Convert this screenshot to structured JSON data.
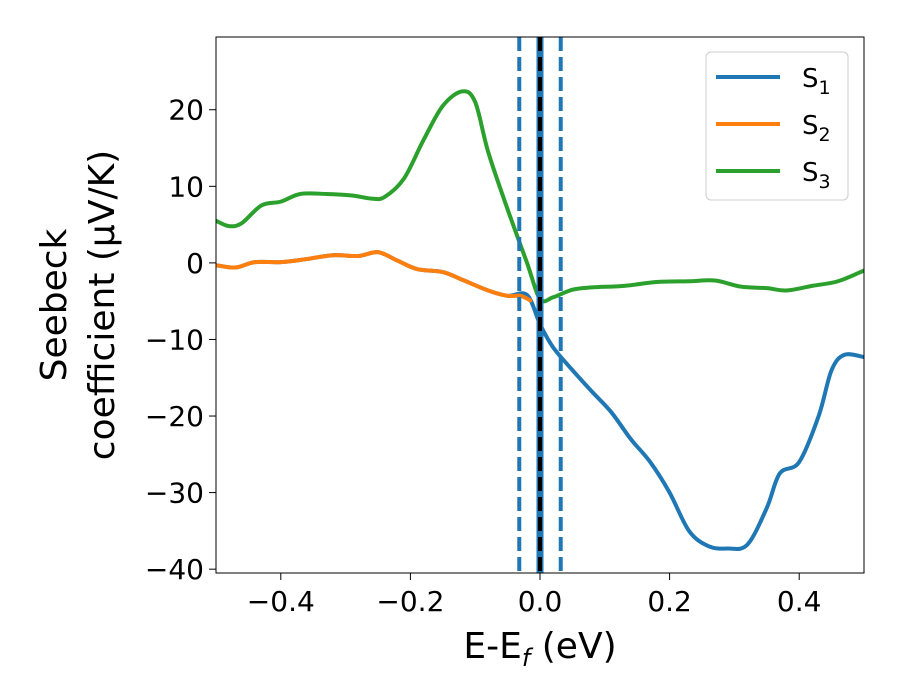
{
  "chart_data": {
    "type": "line",
    "xlabel": {
      "main": "E-E",
      "sub": "f",
      "tail": " (eV)"
    },
    "ylabel": {
      "line1": "Seebeck",
      "line2": "coefficient  (μV/K)"
    },
    "xlim": [
      -0.5,
      0.5
    ],
    "ylim": [
      -40.5,
      29.5
    ],
    "x_ticks": [
      -0.4,
      -0.2,
      0.0,
      0.2,
      0.4
    ],
    "x_tick_labels": [
      "−0.4",
      "−0.2",
      "0.0",
      "0.2",
      "0.4"
    ],
    "y_ticks": [
      20,
      10,
      0,
      -10,
      -20,
      -30,
      -40
    ],
    "y_tick_labels": [
      "20",
      "10",
      "0",
      "−10",
      "−20",
      "−30",
      "−40"
    ],
    "grid": false,
    "legend": {
      "position": "top-right"
    },
    "series": [
      {
        "name": "S1",
        "label_main": "S",
        "label_sub": "1",
        "color": "#1f77b4",
        "points": [
          [
            -0.5,
            -0.3
          ],
          [
            -0.47,
            -0.6
          ],
          [
            -0.44,
            0.1
          ],
          [
            -0.4,
            0.1
          ],
          [
            -0.36,
            0.5
          ],
          [
            -0.32,
            1.0
          ],
          [
            -0.28,
            0.9
          ],
          [
            -0.25,
            1.4
          ],
          [
            -0.22,
            0.3
          ],
          [
            -0.19,
            -0.8
          ],
          [
            -0.15,
            -1.2
          ],
          [
            -0.12,
            -2.2
          ],
          [
            -0.08,
            -3.6
          ],
          [
            -0.05,
            -4.3
          ],
          [
            -0.02,
            -4.2
          ],
          [
            0.0,
            -8.0
          ],
          [
            0.02,
            -11.0
          ],
          [
            0.05,
            -14.0
          ],
          [
            0.08,
            -16.8
          ],
          [
            0.11,
            -19.5
          ],
          [
            0.14,
            -23.0
          ],
          [
            0.17,
            -26.0
          ],
          [
            0.2,
            -30.0
          ],
          [
            0.23,
            -35.0
          ],
          [
            0.26,
            -37.0
          ],
          [
            0.29,
            -37.3
          ],
          [
            0.32,
            -36.8
          ],
          [
            0.35,
            -32.0
          ],
          [
            0.37,
            -27.5
          ],
          [
            0.4,
            -26.0
          ],
          [
            0.43,
            -20.0
          ],
          [
            0.45,
            -14.0
          ],
          [
            0.47,
            -12.0
          ],
          [
            0.5,
            -12.3
          ]
        ]
      },
      {
        "name": "S2",
        "label_main": "S",
        "label_sub": "2",
        "color": "#ff7f0e",
        "points": [
          [
            -0.5,
            -0.3
          ],
          [
            -0.47,
            -0.6
          ],
          [
            -0.44,
            0.1
          ],
          [
            -0.4,
            0.1
          ],
          [
            -0.36,
            0.5
          ],
          [
            -0.32,
            1.0
          ],
          [
            -0.28,
            0.9
          ],
          [
            -0.25,
            1.4
          ],
          [
            -0.22,
            0.3
          ],
          [
            -0.19,
            -0.8
          ],
          [
            -0.15,
            -1.2
          ],
          [
            -0.12,
            -2.2
          ],
          [
            -0.08,
            -3.6
          ],
          [
            -0.05,
            -4.3
          ],
          [
            -0.03,
            -4.3
          ],
          [
            -0.015,
            -4.9
          ]
        ]
      },
      {
        "name": "S3",
        "label_main": "S",
        "label_sub": "3",
        "color": "#2ca02c",
        "points": [
          [
            -0.5,
            5.5
          ],
          [
            -0.48,
            4.8
          ],
          [
            -0.46,
            5.2
          ],
          [
            -0.43,
            7.5
          ],
          [
            -0.4,
            8.0
          ],
          [
            -0.37,
            9.0
          ],
          [
            -0.33,
            9.0
          ],
          [
            -0.29,
            8.8
          ],
          [
            -0.26,
            8.4
          ],
          [
            -0.24,
            8.6
          ],
          [
            -0.21,
            11.0
          ],
          [
            -0.18,
            16.0
          ],
          [
            -0.15,
            20.5
          ],
          [
            -0.12,
            22.4
          ],
          [
            -0.1,
            21.0
          ],
          [
            -0.08,
            14.5
          ],
          [
            -0.05,
            7.0
          ],
          [
            -0.02,
            0.0
          ],
          [
            0.0,
            -4.7
          ],
          [
            0.02,
            -4.5
          ],
          [
            0.05,
            -3.5
          ],
          [
            0.08,
            -3.2
          ],
          [
            0.13,
            -3.0
          ],
          [
            0.18,
            -2.5
          ],
          [
            0.23,
            -2.4
          ],
          [
            0.27,
            -2.3
          ],
          [
            0.31,
            -3.1
          ],
          [
            0.35,
            -3.3
          ],
          [
            0.38,
            -3.6
          ],
          [
            0.42,
            -3.0
          ],
          [
            0.46,
            -2.4
          ],
          [
            0.5,
            -1.0
          ]
        ]
      }
    ],
    "vlines": [
      {
        "x": -0.032,
        "color": "#1f77b4",
        "dash": true
      },
      {
        "x": 0.032,
        "color": "#1f77b4",
        "dash": true
      },
      {
        "x": 0.0,
        "color": "#1f77b4",
        "dash": false
      },
      {
        "x": 0.0,
        "color": "#000000",
        "dash": true
      }
    ]
  }
}
